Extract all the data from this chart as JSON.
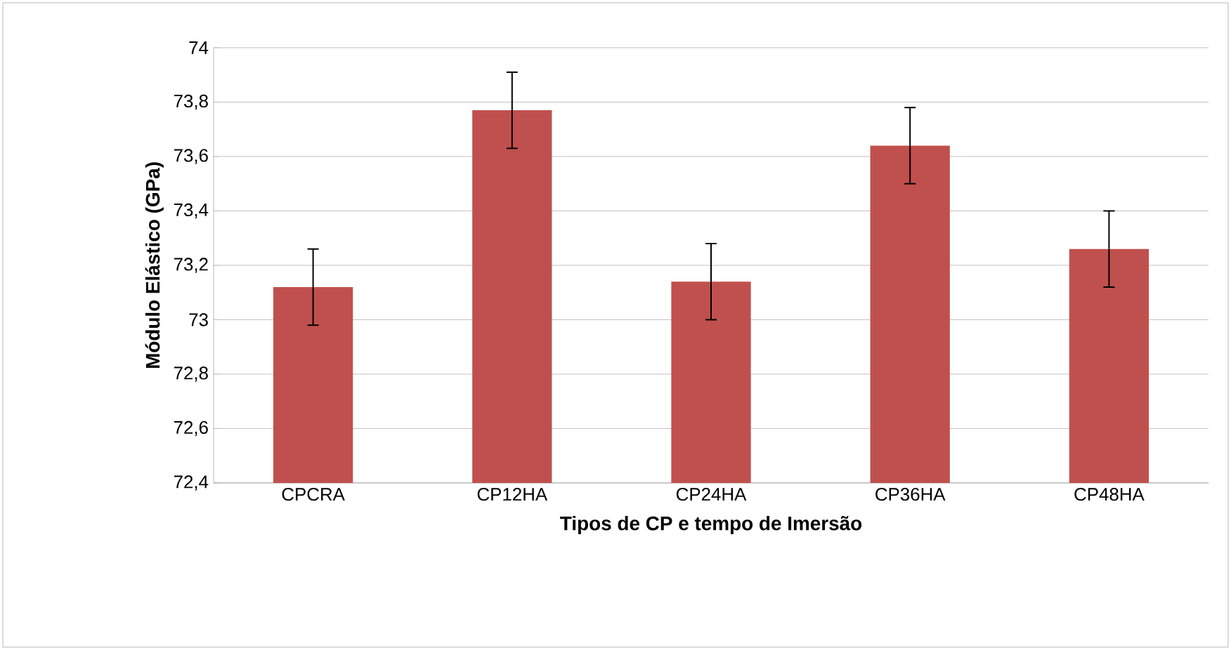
{
  "chart_data": {
    "type": "bar",
    "xlabel": "Tipos de CP e tempo de Imersão",
    "ylabel": "Módulo Elástico (GPa)",
    "categories": [
      "CPCRA",
      "CP12HA",
      "CP24HA",
      "CP36HA",
      "CP48HA"
    ],
    "values": [
      73.12,
      73.77,
      73.14,
      73.64,
      73.26
    ],
    "errors": [
      0.14,
      0.14,
      0.14,
      0.14,
      0.14
    ],
    "color": "#c0504d",
    "ylim": [
      72.4,
      74
    ],
    "yticks": [
      {
        "value": 72.4,
        "label": "72,4"
      },
      {
        "value": 72.6,
        "label": "72,6"
      },
      {
        "value": 72.8,
        "label": "72,8"
      },
      {
        "value": 73,
        "label": "73"
      },
      {
        "value": 73.2,
        "label": "73,2"
      },
      {
        "value": 73.4,
        "label": "73,4"
      },
      {
        "value": 73.6,
        "label": "73,6"
      },
      {
        "value": 73.8,
        "label": "73,8"
      },
      {
        "value": 74,
        "label": "74"
      }
    ],
    "grid": "y"
  }
}
